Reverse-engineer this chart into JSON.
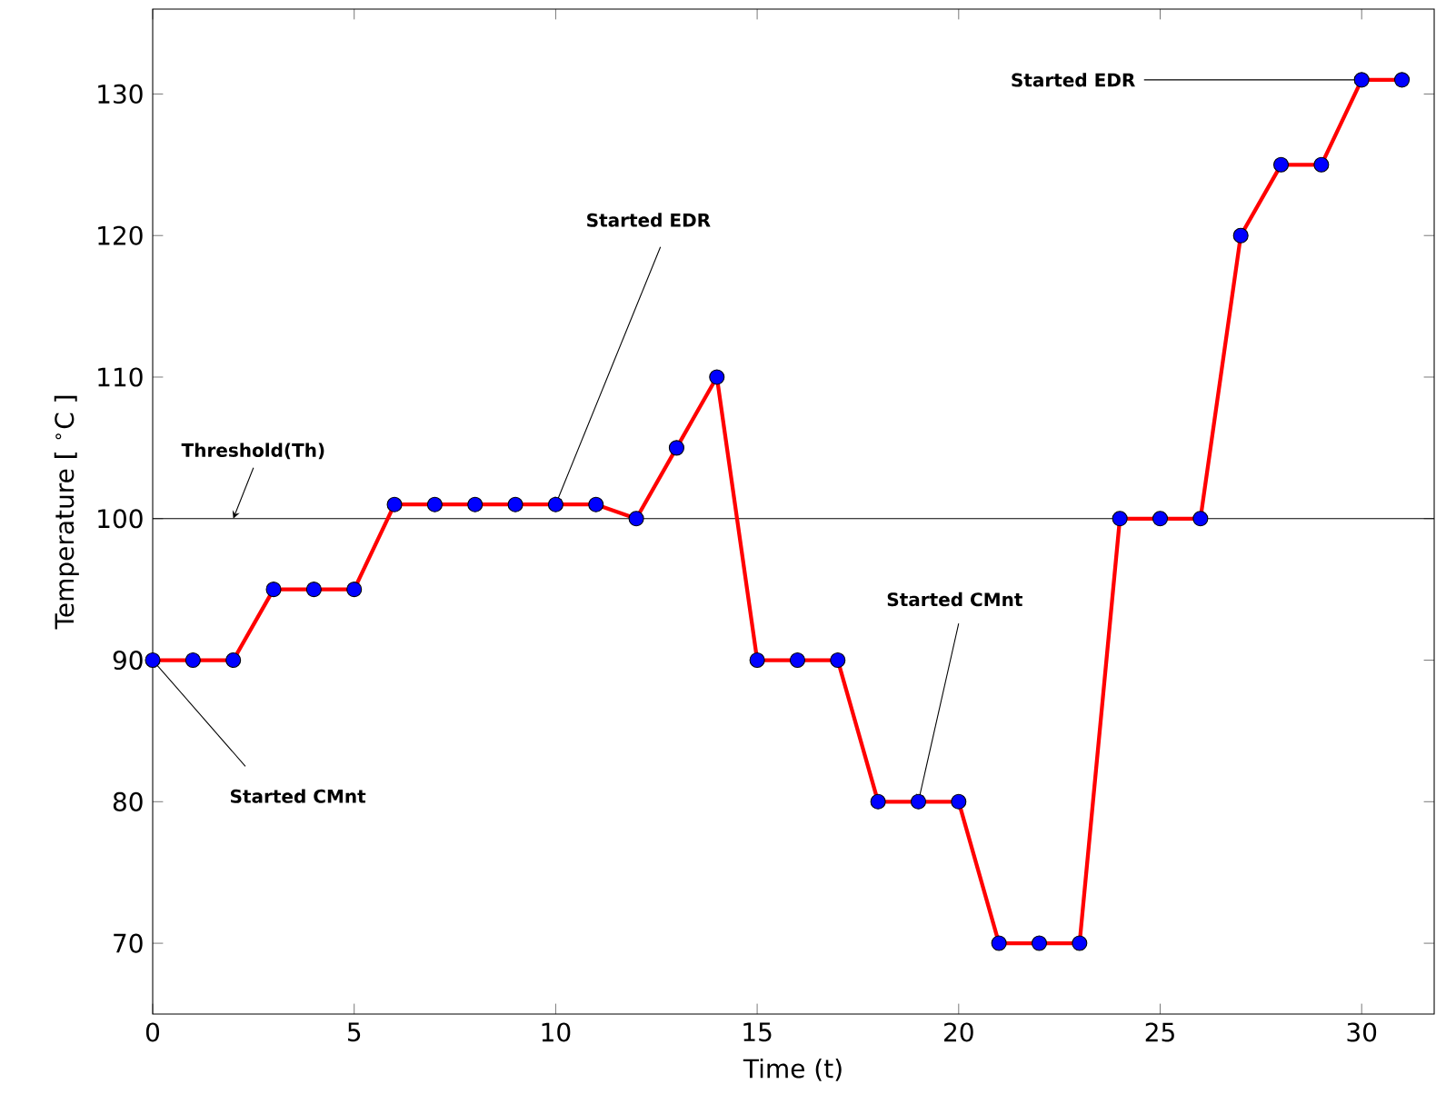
{
  "chart_data": {
    "type": "line",
    "xlabel": "Time (t)",
    "ylabel": "Temperature [ $^{∘}$C ]",
    "x": [
      0,
      1,
      2,
      3,
      4,
      5,
      6,
      7,
      8,
      9,
      10,
      11,
      12,
      13,
      14,
      15,
      16,
      17,
      18,
      19,
      20,
      21,
      22,
      23,
      24,
      25,
      26,
      27,
      28,
      29,
      30,
      31
    ],
    "series": [
      {
        "color": "#ff0000",
        "values": [
          90,
          90,
          90,
          95,
          95,
          95,
          101,
          101,
          101,
          101,
          101,
          101,
          100,
          105,
          110,
          90,
          90,
          90,
          80,
          80,
          80,
          70,
          70,
          70,
          100,
          100,
          100,
          120,
          125,
          125,
          131,
          131
        ]
      }
    ],
    "marker": "circle",
    "xlim": [
      0,
      31.8
    ],
    "ylim": [
      65,
      136
    ],
    "xticks": [
      0,
      5,
      10,
      15,
      20,
      25,
      30
    ],
    "yticks": [
      70,
      80,
      90,
      100,
      110,
      120,
      130
    ],
    "ref_lines": [
      {
        "axis": "y",
        "value": 100,
        "label": "Threshold(Th)",
        "color": "#000000"
      }
    ],
    "annotations": [
      {
        "text": "Started CMnt",
        "x": 0,
        "y": 90
      },
      {
        "text": "Started EDR",
        "x": 10,
        "y": 101
      },
      {
        "text": "Started CMnt",
        "x": 19,
        "y": 80
      },
      {
        "text": "Started EDR",
        "x": 30,
        "y": 131
      }
    ]
  }
}
